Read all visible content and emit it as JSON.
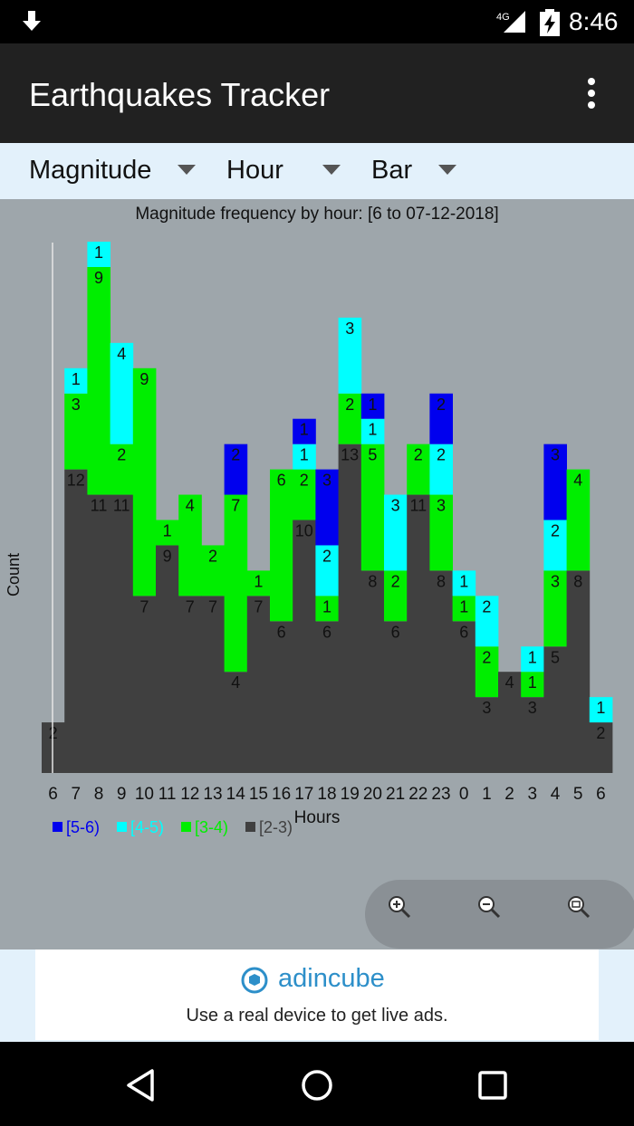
{
  "status_bar": {
    "time": "8:46",
    "network": "4G"
  },
  "app": {
    "title": "Earthquakes Tracker"
  },
  "selectors": [
    {
      "label": "Magnitude"
    },
    {
      "label": "Hour"
    },
    {
      "label": "Bar"
    }
  ],
  "ad": {
    "brand": "adincube",
    "message": "Use a real device to get live ads."
  },
  "colors": {
    "app_bar": "#212121",
    "chart_bg": "#9ea6ab",
    "series_5_6": "#0000ee",
    "series_4_5": "#00ffff",
    "series_3_4": "#00ee00",
    "series_2_3": "#404040"
  },
  "chart_data": {
    "type": "bar",
    "stacked": true,
    "title": "Magnitude frequency by hour: [6 to 07-12-2018]",
    "xlabel": "Hours",
    "ylabel": "Count",
    "ylim": [
      0,
      21
    ],
    "legend_position": "bottom-left",
    "categories": [
      "6",
      "7",
      "8",
      "9",
      "10",
      "11",
      "12",
      "13",
      "14",
      "15",
      "16",
      "17",
      "18",
      "19",
      "20",
      "21",
      "22",
      "23",
      "0",
      "1",
      "2",
      "3",
      "4",
      "5",
      "6"
    ],
    "series": [
      {
        "name": "[2-3)",
        "values": [
          2,
          12,
          11,
          11,
          7,
          9,
          7,
          7,
          4,
          7,
          6,
          10,
          6,
          13,
          8,
          6,
          11,
          8,
          6,
          3,
          4,
          3,
          5,
          8,
          2
        ]
      },
      {
        "name": "[3-4)",
        "values": [
          0,
          3,
          9,
          2,
          9,
          1,
          4,
          2,
          7,
          1,
          6,
          2,
          1,
          2,
          5,
          2,
          2,
          3,
          1,
          2,
          0,
          1,
          3,
          4,
          0
        ]
      },
      {
        "name": "[4-5)",
        "values": [
          0,
          1,
          1,
          4,
          0,
          0,
          0,
          0,
          0,
          0,
          0,
          1,
          2,
          3,
          1,
          3,
          0,
          2,
          1,
          2,
          0,
          1,
          2,
          0,
          1
        ]
      },
      {
        "name": "[5-6)",
        "values": [
          0,
          0,
          0,
          0,
          0,
          0,
          0,
          0,
          2,
          0,
          0,
          1,
          3,
          0,
          1,
          0,
          0,
          2,
          0,
          0,
          0,
          0,
          3,
          0,
          0
        ]
      }
    ]
  }
}
